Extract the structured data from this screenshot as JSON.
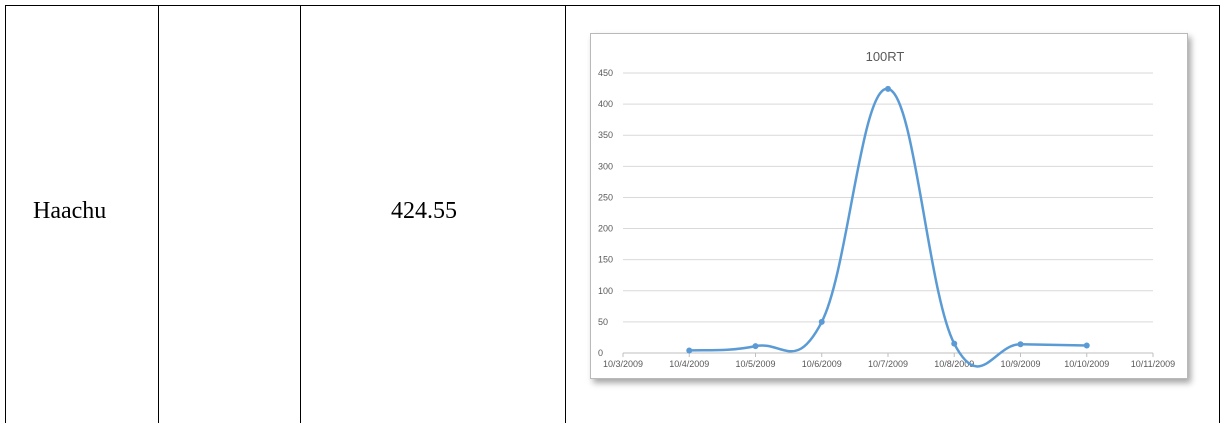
{
  "table": {
    "name_cell": "Haachu",
    "value_cell": "424.55"
  },
  "chart_data": {
    "type": "line",
    "title": "100RT",
    "xlabel": "",
    "ylabel": "",
    "x": [
      "10/4/2009",
      "10/5/2009",
      "10/6/2009",
      "10/7/2009",
      "10/8/2009",
      "10/9/2009",
      "10/10/2009"
    ],
    "x_ticks": [
      "10/3/2009",
      "10/4/2009",
      "10/5/2009",
      "10/6/2009",
      "10/7/2009",
      "10/8/2009",
      "10/9/2009",
      "10/10/2009",
      "10/11/2009"
    ],
    "y_ticks": [
      "0",
      "50",
      "100",
      "150",
      "200",
      "250",
      "300",
      "350",
      "400",
      "450"
    ],
    "ylim": [
      0,
      450
    ],
    "series": [
      {
        "values": [
          4,
          11,
          50,
          424.55,
          15,
          14,
          12
        ]
      }
    ],
    "smooth": true,
    "grid": true,
    "legend": "none",
    "colors": {
      "line": "#5b9bd5",
      "grid": "#d9d9d9",
      "axis": "#bfbfbf"
    }
  }
}
